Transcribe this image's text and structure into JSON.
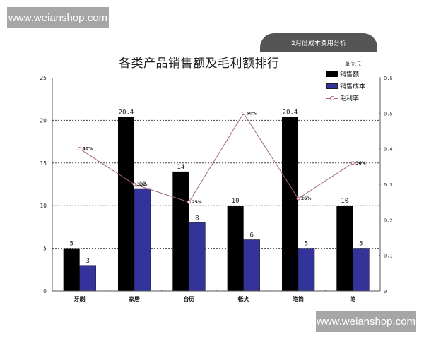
{
  "watermarks": {
    "top": "www.weianshop.com",
    "bottom": "www.weianshop.com"
  },
  "header_tab": "2月份成本费用分析",
  "unit_label": "单位:元",
  "colors": {
    "sales": "#000000",
    "cost": "#333399",
    "margin": "#c06070",
    "grid": "#444444"
  },
  "chart_data": {
    "type": "bar",
    "title": "各类产品销售额及毛利额排行",
    "xlabel": "",
    "ylabel": "",
    "categories": [
      "牙刷",
      "家居",
      "台历",
      "帐夹",
      "笔筒",
      "笔"
    ],
    "series": [
      {
        "name": "销售额",
        "type": "bar",
        "axis": "left",
        "values": [
          5,
          20.4,
          14,
          10,
          20.4,
          10
        ]
      },
      {
        "name": "销售成本",
        "type": "bar",
        "axis": "left",
        "values": [
          3,
          12,
          8,
          6,
          5,
          5
        ]
      },
      {
        "name": "毛利率",
        "type": "line",
        "axis": "right",
        "values": [
          0.4,
          0.3,
          0.25,
          0.5,
          0.26,
          0.36
        ],
        "labels": [
          "40%",
          "30%",
          "25%",
          "50%",
          "26%",
          "36%"
        ]
      }
    ],
    "ylim": [
      0,
      25
    ],
    "yticks": [
      "0",
      "5",
      "10",
      "15",
      "20",
      "25"
    ],
    "y2lim": [
      0,
      0.6
    ],
    "y2ticks": [
      "0",
      "0.1",
      "0.2",
      "0.3",
      "0.4",
      "0.5",
      "0.6"
    ],
    "grid": "horizontal dotted at 5,10,15,20",
    "legend": {
      "position": "top-right",
      "entries": [
        "销售额",
        "销售成本",
        "毛利率"
      ]
    }
  }
}
